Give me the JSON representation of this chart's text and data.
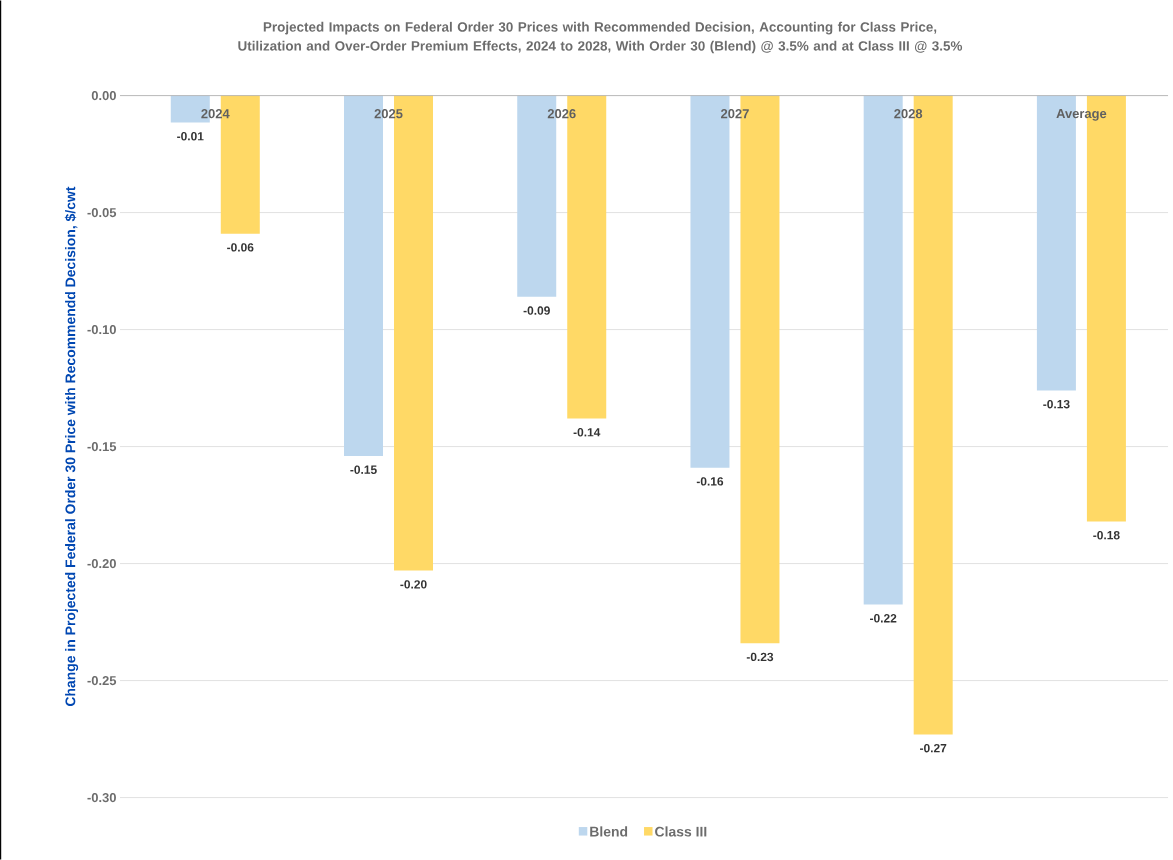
{
  "chart_data": {
    "type": "bar",
    "title": "Projected Impacts on Federal Order 30 Prices with Recommended Decision, Accounting for Class Price, Utilization and Over-Order Premium Effects, 2024 to 2028, With Order 30 (Blend) @ 3.5% and at Class III @ 3.5%",
    "ylabel": "Change in Projected Federal Order 30 Price with Recommendd Decision, $/cwt",
    "categories": [
      "2024",
      "2025",
      "2026",
      "2027",
      "2028",
      "Average"
    ],
    "series": [
      {
        "name": "Blend",
        "color": "#bdd7ee",
        "values": [
          -0.0115,
          -0.154,
          -0.086,
          -0.159,
          -0.2175,
          -0.126
        ],
        "value_labels": [
          "-0.01",
          "-0.15",
          "-0.09",
          "-0.16",
          "-0.22",
          "-0.13"
        ]
      },
      {
        "name": "Class III",
        "color": "#ffd966",
        "values": [
          -0.059,
          -0.203,
          -0.138,
          -0.234,
          -0.273,
          -0.182
        ],
        "value_labels": [
          "-0.06",
          "-0.20",
          "-0.14",
          "-0.23",
          "-0.27",
          "-0.18"
        ]
      }
    ],
    "ylim": [
      -0.3,
      0
    ],
    "yticks": [
      {
        "value": 0,
        "label": "0.00"
      },
      {
        "value": -0.05,
        "label": "-0.05"
      },
      {
        "value": -0.1,
        "label": "-0.10"
      },
      {
        "value": -0.15,
        "label": "-0.15"
      },
      {
        "value": -0.2,
        "label": "-0.20"
      },
      {
        "value": -0.25,
        "label": "-0.25"
      },
      {
        "value": -0.3,
        "label": "-0.30"
      }
    ],
    "grid": "y",
    "legend": "bottom"
  }
}
